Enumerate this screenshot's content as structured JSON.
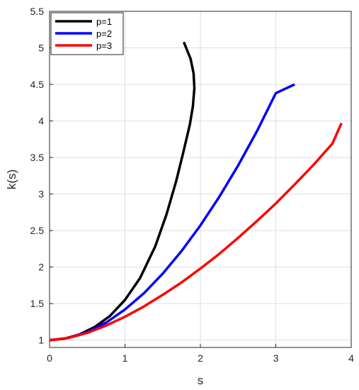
{
  "chart_data": {
    "type": "line",
    "title": "",
    "xlabel": "s",
    "ylabel": "k(s)",
    "xlim": [
      0,
      4
    ],
    "ylim": [
      0.9,
      5.5
    ],
    "xticks": [
      "0",
      "1",
      "2",
      "3",
      "4"
    ],
    "yticks": [
      "1",
      "1.5",
      "2",
      "2.5",
      "3",
      "3.5",
      "4",
      "4.5",
      "5",
      "5.5"
    ],
    "grid": true,
    "legend_position": "top-left",
    "series": [
      {
        "name": "p=1",
        "color": "#000000",
        "x": [
          0.0,
          0.2,
          0.4,
          0.6,
          0.8,
          1.0,
          1.2,
          1.4,
          1.55,
          1.68,
          1.78,
          1.86,
          1.9,
          1.92,
          1.91,
          1.87,
          1.78
        ],
        "y": [
          1.0,
          1.02,
          1.08,
          1.18,
          1.33,
          1.55,
          1.85,
          2.28,
          2.72,
          3.18,
          3.6,
          3.95,
          4.2,
          4.45,
          4.65,
          4.85,
          5.08
        ]
      },
      {
        "name": "p=2",
        "color": "#0000ff",
        "x": [
          0.0,
          0.25,
          0.5,
          0.75,
          1.0,
          1.25,
          1.5,
          1.75,
          2.0,
          2.25,
          2.5,
          2.75,
          3.0,
          3.25
        ],
        "y": [
          1.0,
          1.03,
          1.11,
          1.24,
          1.42,
          1.64,
          1.91,
          2.22,
          2.57,
          2.96,
          3.39,
          3.86,
          4.38,
          4.5
        ]
      },
      {
        "name": "p=3",
        "color": "#ff0000",
        "x": [
          0.0,
          0.25,
          0.5,
          0.75,
          1.0,
          1.25,
          1.5,
          1.75,
          2.0,
          2.25,
          2.5,
          2.75,
          3.0,
          3.25,
          3.5,
          3.75,
          3.87
        ],
        "y": [
          1.0,
          1.03,
          1.1,
          1.2,
          1.32,
          1.46,
          1.62,
          1.79,
          1.98,
          2.18,
          2.4,
          2.63,
          2.87,
          3.13,
          3.4,
          3.69,
          3.97
        ]
      }
    ]
  }
}
